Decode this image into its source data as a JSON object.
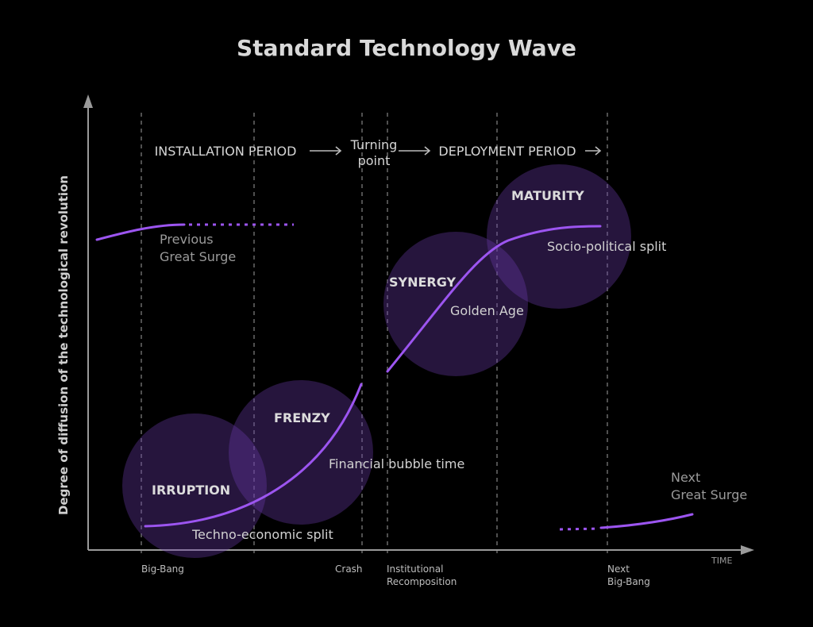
{
  "title": "Standard Technology Wave",
  "y_axis_label": "Degree of diffusion of the technological revolution",
  "x_axis_label": "TIME",
  "periods": {
    "installation": "INSTALLATION PERIOD",
    "turning_line1": "Turning",
    "turning_line2": "point",
    "deployment": "DEPLOYMENT PERIOD"
  },
  "phases": {
    "irruption": {
      "name": "IRRUPTION",
      "desc": "Techno-economic split"
    },
    "frenzy": {
      "name": "FRENZY",
      "desc": "Financial bubble time"
    },
    "synergy": {
      "name": "SYNERGY",
      "desc": "Golden Age"
    },
    "maturity": {
      "name": "MATURITY",
      "desc": "Socio-political split"
    }
  },
  "previous_surge": {
    "line1": "Previous",
    "line2": "Great Surge"
  },
  "next_surge": {
    "line1": "Next",
    "line2": "Great Surge"
  },
  "ticks": {
    "big_bang": "Big-Bang",
    "crash": "Crash",
    "institutional_line1": "Institutional",
    "institutional_line2": "Recomposition",
    "next_line1": "Next",
    "next_line2": "Big-Bang"
  },
  "colors": {
    "background": "#000000",
    "curve": "#9c55f0",
    "bubble": "#6a3aa8",
    "text": "#d6d6d6",
    "muted": "#9a9a9a"
  }
}
